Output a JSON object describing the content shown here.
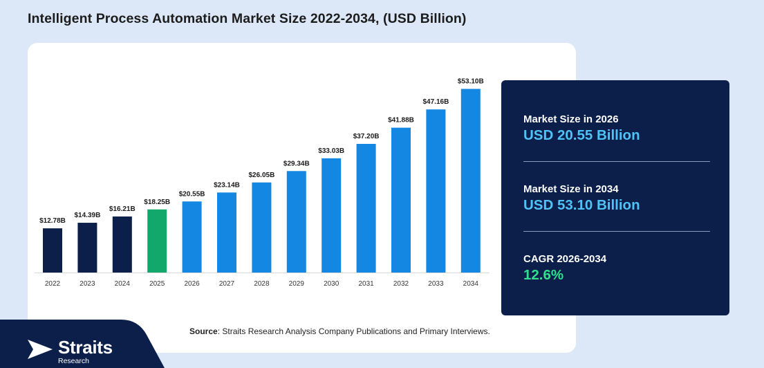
{
  "title": "Intelligent Process Automation Market Size 2022-2034, (USD Billion)",
  "chart_data": {
    "type": "bar",
    "categories": [
      "2022",
      "2023",
      "2024",
      "2025",
      "2026",
      "2027",
      "2028",
      "2029",
      "2030",
      "2031",
      "2032",
      "2033",
      "2034"
    ],
    "values": [
      12.78,
      14.39,
      16.21,
      18.25,
      20.55,
      23.14,
      26.05,
      29.34,
      33.03,
      37.2,
      41.88,
      47.16,
      53.1
    ],
    "data_labels": [
      "$12.78B",
      "$14.39B",
      "$16.21B",
      "$18.25B",
      "$20.55B",
      "$23.14B",
      "$26.05B",
      "$29.34B",
      "$33.03B",
      "$37.20B",
      "$41.88B",
      "$47.16B",
      "$53.10B"
    ],
    "bar_colors": [
      "#0b1f4a",
      "#0b1f4a",
      "#0b1f4a",
      "#13a86b",
      "#1487e2",
      "#1487e2",
      "#1487e2",
      "#1487e2",
      "#1487e2",
      "#1487e2",
      "#1487e2",
      "#1487e2",
      "#1487e2"
    ],
    "title": "",
    "xlabel": "",
    "ylabel": "",
    "ylim": [
      0,
      60
    ],
    "grid": false,
    "legend": "none"
  },
  "stats": [
    {
      "label": "Market Size in 2026",
      "value": "USD 20.55 Billion",
      "color": "#4fc3f7"
    },
    {
      "label": "Market Size in 2034",
      "value": "USD 53.10 Billion",
      "color": "#4fc3f7"
    },
    {
      "label": "CAGR 2026-2034",
      "value": "12.6%",
      "color": "#2fe08d"
    }
  ],
  "source": {
    "prefix": "Source",
    "text": ": Straits Research Analysis Company Publications and Primary Interviews."
  },
  "brand": {
    "name": "Straits",
    "tagline": "Research",
    "band_color": "#0b1f4a"
  }
}
